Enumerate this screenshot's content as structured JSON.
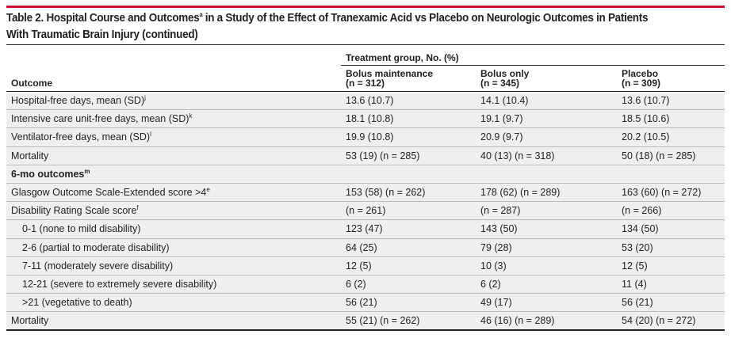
{
  "title": {
    "line1": "Table 2. Hospital Course and Outcomes",
    "sup": "a",
    "line1_rest": " in a Study of the Effect of Tranexamic Acid vs Placebo on Neurologic Outcomes in Patients",
    "line2": "With Traumatic Brain Injury (continued)"
  },
  "header": {
    "outcome": "Outcome",
    "group": "Treatment group, No. (%)",
    "cols": [
      {
        "name": "Bolus maintenance",
        "n": "(n = 312)"
      },
      {
        "name": "Bolus only",
        "n": "(n = 345)"
      },
      {
        "name": "Placebo",
        "n": "(n = 309)"
      }
    ]
  },
  "rows": [
    {
      "label": "Hospital-free days, mean (SD)",
      "sup": "j",
      "v": [
        "13.6 (10.7)",
        "14.1 (10.4)",
        "13.6 (10.7)"
      ]
    },
    {
      "label": "Intensive care unit-free days, mean (SD)",
      "sup": "k",
      "v": [
        "18.1 (10.8)",
        "19.1 (9.7)",
        "18.5 (10.6)"
      ]
    },
    {
      "label": "Ventilator-free days, mean (SD)",
      "sup": "l",
      "v": [
        "19.9 (10.8)",
        "20.9 (9.7)",
        "20.2 (10.5)"
      ]
    },
    {
      "label": "Mortality",
      "sup": "",
      "v": [
        "53 (19) (n = 285)",
        "40 (13) (n = 318)",
        "50 (18) (n = 285)"
      ]
    },
    {
      "label": "6-mo outcomes",
      "sup": "m",
      "section": true,
      "v": [
        "",
        "",
        ""
      ]
    },
    {
      "label": "Glasgow Outcome Scale-Extended score >4",
      "sup": "e",
      "v": [
        "153 (58) (n = 262)",
        "178 (62) (n = 289)",
        "163 (60) (n = 272)"
      ]
    },
    {
      "label": "Disability Rating Scale score",
      "sup": "f",
      "v": [
        "(n = 261)",
        "(n = 287)",
        "(n = 266)"
      ]
    },
    {
      "label": "0-1 (none to mild disability)",
      "sup": "",
      "indent": true,
      "v": [
        "123 (47)",
        "143 (50)",
        "134 (50)"
      ]
    },
    {
      "label": "2-6 (partial to moderate disability)",
      "sup": "",
      "indent": true,
      "v": [
        "64 (25)",
        "79 (28)",
        "53 (20)"
      ]
    },
    {
      "label": "7-11 (moderately severe disability)",
      "sup": "",
      "indent": true,
      "v": [
        "12 (5)",
        "10 (3)",
        "12 (5)"
      ]
    },
    {
      "label": "12-21 (severe to extremely severe disability)",
      "sup": "",
      "indent": true,
      "v": [
        "6 (2)",
        "6 (2)",
        "11 (4)"
      ]
    },
    {
      "label": ">21 (vegetative to death)",
      "sup": "",
      "indent": true,
      "v": [
        "56 (21)",
        "49 (17)",
        "56 (21)"
      ]
    },
    {
      "label": "Mortality",
      "sup": "",
      "v": [
        "55 (21) (n = 262)",
        "46 (16) (n = 289)",
        "54 (20) (n = 272)"
      ]
    }
  ]
}
